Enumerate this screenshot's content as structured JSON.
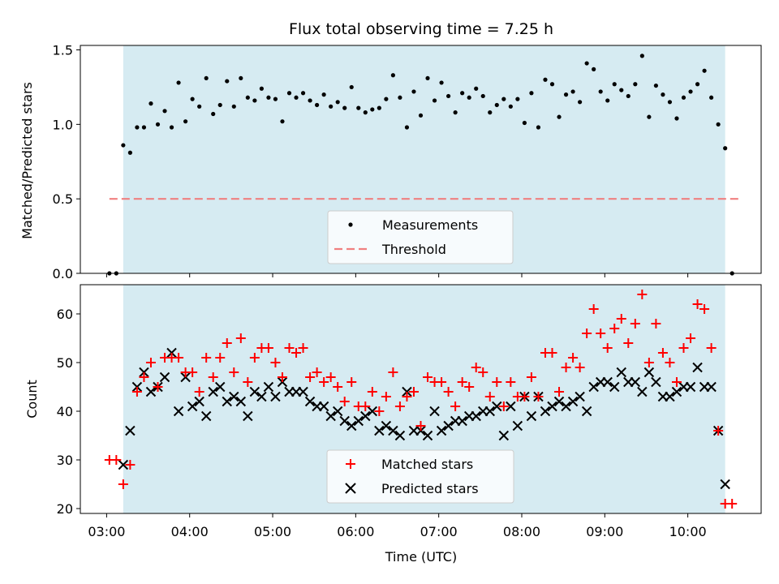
{
  "chart_data": [
    {
      "type": "scatter",
      "title": "Flux total observing time = 7.25 h",
      "xlabel": "",
      "ylabel": "Matched/Predicted stars",
      "ylim": [
        0,
        1.53
      ],
      "yticks": [
        0.0,
        0.5,
        1.0,
        1.5
      ],
      "yticklabels": [
        "0.0",
        "0.5",
        "1.0",
        "1.5"
      ],
      "observing_window": [
        "03:12",
        "10:27"
      ],
      "threshold": 0.5,
      "legend": {
        "position": "lower center",
        "entries": [
          "Measurements",
          "Threshold"
        ]
      },
      "series": [
        {
          "name": "Measurements",
          "color": "#000000",
          "marker": "dot",
          "x": [
            "03:02",
            "03:07",
            "03:12",
            "03:17",
            "03:22",
            "03:27",
            "03:32",
            "03:37",
            "03:42",
            "03:47",
            "03:52",
            "03:57",
            "04:02",
            "04:07",
            "04:12",
            "04:17",
            "04:22",
            "04:27",
            "04:32",
            "04:37",
            "04:42",
            "04:47",
            "04:52",
            "04:57",
            "05:02",
            "05:07",
            "05:12",
            "05:17",
            "05:22",
            "05:27",
            "05:32",
            "05:37",
            "05:42",
            "05:47",
            "05:52",
            "05:57",
            "06:02",
            "06:07",
            "06:12",
            "06:17",
            "06:22",
            "06:27",
            "06:32",
            "06:37",
            "06:42",
            "06:47",
            "06:52",
            "06:57",
            "07:02",
            "07:07",
            "07:12",
            "07:17",
            "07:22",
            "07:27",
            "07:32",
            "07:37",
            "07:42",
            "07:47",
            "07:52",
            "07:57",
            "08:02",
            "08:07",
            "08:12",
            "08:17",
            "08:22",
            "08:27",
            "08:32",
            "08:37",
            "08:42",
            "08:47",
            "08:52",
            "08:57",
            "09:02",
            "09:07",
            "09:12",
            "09:17",
            "09:22",
            "09:27",
            "09:32",
            "09:37",
            "09:42",
            "09:47",
            "09:52",
            "09:57",
            "10:02",
            "10:07",
            "10:12",
            "10:17",
            "10:22",
            "10:27",
            "10:32"
          ],
          "y": [
            0.0,
            0.0,
            0.86,
            0.81,
            0.98,
            0.98,
            1.14,
            1.0,
            1.09,
            0.98,
            1.28,
            1.02,
            1.17,
            1.12,
            1.31,
            1.07,
            1.13,
            1.29,
            1.12,
            1.31,
            1.18,
            1.16,
            1.24,
            1.18,
            1.17,
            1.02,
            1.21,
            1.18,
            1.21,
            1.16,
            1.13,
            1.2,
            1.12,
            1.15,
            1.11,
            1.25,
            1.11,
            1.08,
            1.1,
            1.11,
            1.17,
            1.33,
            1.18,
            0.98,
            1.22,
            1.06,
            1.31,
            1.16,
            1.28,
            1.19,
            1.08,
            1.21,
            1.18,
            1.24,
            1.19,
            1.08,
            1.13,
            1.17,
            1.12,
            1.17,
            1.01,
            1.21,
            0.98,
            1.3,
            1.27,
            1.05,
            1.2,
            1.22,
            1.15,
            1.41,
            1.37,
            1.22,
            1.16,
            1.27,
            1.23,
            1.19,
            1.27,
            1.46,
            1.05,
            1.26,
            1.2,
            1.15,
            1.04,
            1.18,
            1.22,
            1.27,
            1.36,
            1.18,
            1.0,
            0.84,
            0.0
          ]
        },
        {
          "name": "Threshold",
          "color": "#f08080",
          "linestyle": "dashed",
          "x": [
            "03:02",
            "10:37"
          ],
          "y": [
            0.5,
            0.5
          ]
        }
      ]
    },
    {
      "type": "scatter",
      "title": "",
      "xlabel": "Time (UTC)",
      "ylabel": "Count",
      "ylim": [
        19,
        66
      ],
      "yticks": [
        20,
        30,
        40,
        50,
        60
      ],
      "yticklabels": [
        "20",
        "30",
        "40",
        "50",
        "60"
      ],
      "xlim": [
        "02:41",
        "10:53"
      ],
      "xticks": [
        "03:00",
        "04:00",
        "05:00",
        "06:00",
        "07:00",
        "08:00",
        "09:00",
        "10:00"
      ],
      "xticklabels": [
        "03:00",
        "04:00",
        "05:00",
        "06:00",
        "07:00",
        "08:00",
        "09:00",
        "10:00"
      ],
      "legend": {
        "position": "lower center",
        "entries": [
          "Matched stars",
          "Predicted stars"
        ]
      },
      "series": [
        {
          "name": "Matched stars",
          "color": "#ff0000",
          "marker": "plus",
          "x": [
            "03:02",
            "03:07",
            "03:12",
            "03:17",
            "03:22",
            "03:27",
            "03:32",
            "03:37",
            "03:42",
            "03:47",
            "03:52",
            "03:57",
            "04:02",
            "04:07",
            "04:12",
            "04:17",
            "04:22",
            "04:27",
            "04:32",
            "04:37",
            "04:42",
            "04:47",
            "04:52",
            "04:57",
            "05:02",
            "05:07",
            "05:12",
            "05:17",
            "05:22",
            "05:27",
            "05:32",
            "05:37",
            "05:42",
            "05:47",
            "05:52",
            "05:57",
            "06:02",
            "06:07",
            "06:12",
            "06:17",
            "06:22",
            "06:27",
            "06:32",
            "06:37",
            "06:42",
            "06:47",
            "06:52",
            "06:57",
            "07:02",
            "07:07",
            "07:12",
            "07:17",
            "07:22",
            "07:27",
            "07:32",
            "07:37",
            "07:42",
            "07:47",
            "07:52",
            "07:57",
            "08:02",
            "08:07",
            "08:12",
            "08:17",
            "08:22",
            "08:27",
            "08:32",
            "08:37",
            "08:42",
            "08:47",
            "08:52",
            "08:57",
            "09:02",
            "09:07",
            "09:12",
            "09:17",
            "09:22",
            "09:27",
            "09:32",
            "09:37",
            "09:42",
            "09:47",
            "09:52",
            "09:57",
            "10:02",
            "10:07",
            "10:12",
            "10:17",
            "10:22",
            "10:27",
            "10:32"
          ],
          "y": [
            30,
            30,
            25,
            29,
            44,
            47,
            50,
            45,
            51,
            51,
            51,
            48,
            48,
            44,
            51,
            47,
            51,
            54,
            48,
            55,
            46,
            51,
            53,
            53,
            50,
            47,
            53,
            52,
            53,
            47,
            48,
            46,
            47,
            45,
            42,
            46,
            41,
            41,
            44,
            40,
            43,
            48,
            41,
            43,
            44,
            37,
            47,
            46,
            46,
            44,
            41,
            46,
            45,
            49,
            48,
            43,
            46,
            41,
            46,
            43,
            43,
            47,
            43,
            52,
            52,
            44,
            49,
            51,
            49,
            56,
            61,
            56,
            53,
            57,
            59,
            54,
            58,
            64,
            50,
            58,
            52,
            50,
            46,
            53,
            55,
            62,
            61,
            53,
            36,
            21,
            21
          ]
        },
        {
          "name": "Predicted stars",
          "color": "#000000",
          "marker": "x",
          "x": [
            "03:12",
            "03:17",
            "03:22",
            "03:27",
            "03:32",
            "03:37",
            "03:42",
            "03:47",
            "03:52",
            "03:57",
            "04:02",
            "04:07",
            "04:12",
            "04:17",
            "04:22",
            "04:27",
            "04:32",
            "04:37",
            "04:42",
            "04:47",
            "04:52",
            "04:57",
            "05:02",
            "05:07",
            "05:12",
            "05:17",
            "05:22",
            "05:27",
            "05:32",
            "05:37",
            "05:42",
            "05:47",
            "05:52",
            "05:57",
            "06:02",
            "06:07",
            "06:12",
            "06:17",
            "06:22",
            "06:27",
            "06:32",
            "06:37",
            "06:42",
            "06:47",
            "06:52",
            "06:57",
            "07:02",
            "07:07",
            "07:12",
            "07:17",
            "07:22",
            "07:27",
            "07:32",
            "07:37",
            "07:42",
            "07:47",
            "07:52",
            "07:57",
            "08:02",
            "08:07",
            "08:12",
            "08:17",
            "08:22",
            "08:27",
            "08:32",
            "08:37",
            "08:42",
            "08:47",
            "08:52",
            "08:57",
            "09:02",
            "09:07",
            "09:12",
            "09:17",
            "09:22",
            "09:27",
            "09:32",
            "09:37",
            "09:42",
            "09:47",
            "09:52",
            "09:57",
            "10:02",
            "10:07",
            "10:12",
            "10:17",
            "10:22",
            "10:27"
          ],
          "y": [
            29,
            36,
            45,
            48,
            44,
            45,
            47,
            52,
            40,
            47,
            41,
            42,
            39,
            44,
            45,
            42,
            43,
            42,
            39,
            44,
            43,
            45,
            43,
            46,
            44,
            44,
            44,
            42,
            41,
            41,
            39,
            40,
            38,
            37,
            38,
            39,
            40,
            36,
            37,
            36,
            35,
            44,
            36,
            36,
            35,
            40,
            36,
            37,
            38,
            38,
            39,
            39,
            40,
            40,
            41,
            35,
            41,
            37,
            43,
            39,
            43,
            40,
            41,
            42,
            41,
            42,
            43,
            40,
            45,
            46,
            46,
            45,
            48,
            46,
            46,
            44,
            48,
            46,
            43,
            43,
            44,
            45,
            45,
            49,
            45,
            45,
            36,
            25
          ]
        }
      ]
    }
  ]
}
